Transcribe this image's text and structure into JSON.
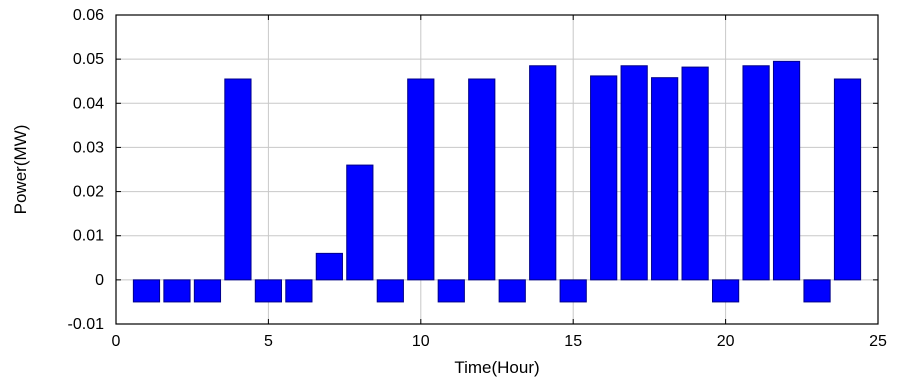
{
  "chart_data": {
    "type": "bar",
    "title": "",
    "xlabel": "Time(Hour)",
    "ylabel": "Power(MW)",
    "xlim": [
      0,
      25
    ],
    "ylim": [
      -0.01,
      0.06
    ],
    "xticks": [
      0,
      5,
      10,
      15,
      20,
      25
    ],
    "xtick_labels": [
      "0",
      "5",
      "10",
      "15",
      "20",
      "25"
    ],
    "yticks": [
      -0.01,
      0,
      0.01,
      0.02,
      0.03,
      0.04,
      0.05,
      0.06
    ],
    "ytick_labels": [
      "-0.01",
      "0",
      "0.01",
      "0.02",
      "0.03",
      "0.04",
      "0.05",
      "0.06"
    ],
    "grid": true,
    "bar_color": "#0000ff",
    "x": [
      1,
      2,
      3,
      4,
      5,
      6,
      7,
      8,
      9,
      10,
      11,
      12,
      13,
      14,
      15,
      16,
      17,
      18,
      19,
      20,
      21,
      22,
      23,
      24
    ],
    "values": [
      -0.005,
      -0.005,
      -0.005,
      0.0455,
      -0.005,
      -0.005,
      0.006,
      0.026,
      -0.005,
      0.0455,
      -0.005,
      0.0455,
      -0.005,
      0.0485,
      -0.005,
      0.0462,
      0.0485,
      0.0458,
      0.0482,
      -0.005,
      0.0485,
      0.0495,
      -0.005,
      0.0455
    ]
  }
}
